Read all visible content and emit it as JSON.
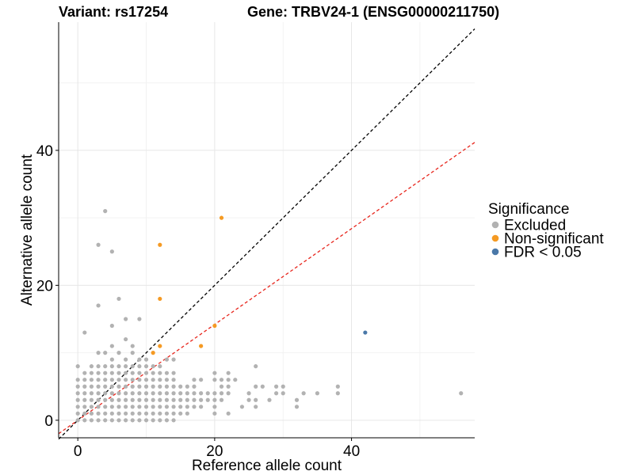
{
  "chart_data": {
    "type": "scatter",
    "title_left": "Variant: rs17254",
    "title_right": "Gene: TRBV24-1 (ENSG00000211750)",
    "xlabel": "Reference allele count",
    "ylabel": "Alternative allele count",
    "xlim": [
      -2.8,
      58
    ],
    "ylim": [
      -2.6,
      59
    ],
    "xticks": [
      0,
      20,
      40
    ],
    "yticks": [
      0,
      20,
      40
    ],
    "grid": true,
    "reference_lines": [
      {
        "name": "y = x",
        "slope": 1.0,
        "intercept": 0,
        "color": "#000000",
        "style": "dashed"
      },
      {
        "name": "red line",
        "slope": 0.71,
        "intercept": 0,
        "color": "#e8251c",
        "style": "dashed"
      }
    ],
    "legend": {
      "title": "Significance",
      "position": "right",
      "items": [
        {
          "label": "Excluded",
          "color": "#b2b2b2"
        },
        {
          "label": "Non-significant",
          "color": "#f59a23"
        },
        {
          "label": "FDR < 0.05",
          "color": "#4a78a8"
        }
      ]
    },
    "series": [
      {
        "name": "Excluded",
        "color": "#b2b2b2",
        "points": [
          [
            0,
            0
          ],
          [
            0,
            1
          ],
          [
            0,
            2
          ],
          [
            0,
            3
          ],
          [
            0,
            4
          ],
          [
            0,
            5
          ],
          [
            0,
            6
          ],
          [
            0,
            8
          ],
          [
            1,
            0
          ],
          [
            1,
            1
          ],
          [
            1,
            2
          ],
          [
            1,
            3
          ],
          [
            1,
            4
          ],
          [
            1,
            5
          ],
          [
            1,
            6
          ],
          [
            1,
            7
          ],
          [
            1,
            13
          ],
          [
            2,
            0
          ],
          [
            2,
            1
          ],
          [
            2,
            2
          ],
          [
            2,
            3
          ],
          [
            2,
            4
          ],
          [
            2,
            5
          ],
          [
            2,
            6
          ],
          [
            2,
            7
          ],
          [
            2,
            8
          ],
          [
            3,
            0
          ],
          [
            3,
            1
          ],
          [
            3,
            2
          ],
          [
            3,
            3
          ],
          [
            3,
            4
          ],
          [
            3,
            5
          ],
          [
            3,
            6
          ],
          [
            3,
            7
          ],
          [
            3,
            8
          ],
          [
            3,
            10
          ],
          [
            3,
            17
          ],
          [
            3,
            26
          ],
          [
            4,
            0
          ],
          [
            4,
            1
          ],
          [
            4,
            2
          ],
          [
            4,
            3
          ],
          [
            4,
            4
          ],
          [
            4,
            5
          ],
          [
            4,
            6
          ],
          [
            4,
            7
          ],
          [
            4,
            8
          ],
          [
            4,
            10
          ],
          [
            4,
            31
          ],
          [
            5,
            0
          ],
          [
            5,
            1
          ],
          [
            5,
            2
          ],
          [
            5,
            3
          ],
          [
            5,
            4
          ],
          [
            5,
            5
          ],
          [
            5,
            6
          ],
          [
            5,
            7
          ],
          [
            5,
            8
          ],
          [
            5,
            9
          ],
          [
            5,
            11
          ],
          [
            5,
            14
          ],
          [
            5,
            25
          ],
          [
            6,
            0
          ],
          [
            6,
            1
          ],
          [
            6,
            2
          ],
          [
            6,
            3
          ],
          [
            6,
            4
          ],
          [
            6,
            5
          ],
          [
            6,
            6
          ],
          [
            6,
            7
          ],
          [
            6,
            8
          ],
          [
            6,
            10
          ],
          [
            6,
            18
          ],
          [
            7,
            0
          ],
          [
            7,
            1
          ],
          [
            7,
            2
          ],
          [
            7,
            3
          ],
          [
            7,
            4
          ],
          [
            7,
            5
          ],
          [
            7,
            6
          ],
          [
            7,
            7
          ],
          [
            7,
            8
          ],
          [
            7,
            9
          ],
          [
            7,
            12
          ],
          [
            7,
            15
          ],
          [
            8,
            0
          ],
          [
            8,
            1
          ],
          [
            8,
            2
          ],
          [
            8,
            3
          ],
          [
            8,
            4
          ],
          [
            8,
            5
          ],
          [
            8,
            6
          ],
          [
            8,
            7
          ],
          [
            8,
            8
          ],
          [
            8,
            10
          ],
          [
            8,
            11
          ],
          [
            9,
            0
          ],
          [
            9,
            1
          ],
          [
            9,
            2
          ],
          [
            9,
            3
          ],
          [
            9,
            4
          ],
          [
            9,
            5
          ],
          [
            9,
            6
          ],
          [
            9,
            7
          ],
          [
            9,
            8
          ],
          [
            9,
            9
          ],
          [
            9,
            15
          ],
          [
            10,
            0
          ],
          [
            10,
            1
          ],
          [
            10,
            2
          ],
          [
            10,
            3
          ],
          [
            10,
            4
          ],
          [
            10,
            5
          ],
          [
            10,
            6
          ],
          [
            10,
            7
          ],
          [
            10,
            8
          ],
          [
            10,
            9
          ],
          [
            11,
            0
          ],
          [
            11,
            1
          ],
          [
            11,
            2
          ],
          [
            11,
            3
          ],
          [
            11,
            4
          ],
          [
            11,
            5
          ],
          [
            11,
            6
          ],
          [
            11,
            7
          ],
          [
            11,
            8
          ],
          [
            12,
            0
          ],
          [
            12,
            1
          ],
          [
            12,
            2
          ],
          [
            12,
            3
          ],
          [
            12,
            4
          ],
          [
            12,
            5
          ],
          [
            12,
            6
          ],
          [
            12,
            7
          ],
          [
            12,
            8
          ],
          [
            13,
            0
          ],
          [
            13,
            1
          ],
          [
            13,
            2
          ],
          [
            13,
            3
          ],
          [
            13,
            4
          ],
          [
            13,
            5
          ],
          [
            13,
            6
          ],
          [
            13,
            7
          ],
          [
            13,
            9
          ],
          [
            14,
            0
          ],
          [
            14,
            1
          ],
          [
            14,
            2
          ],
          [
            14,
            3
          ],
          [
            14,
            4
          ],
          [
            14,
            5
          ],
          [
            14,
            6
          ],
          [
            14,
            7
          ],
          [
            14,
            9
          ],
          [
            15,
            1
          ],
          [
            15,
            2
          ],
          [
            15,
            3
          ],
          [
            15,
            4
          ],
          [
            15,
            5
          ],
          [
            16,
            1
          ],
          [
            16,
            2
          ],
          [
            16,
            3
          ],
          [
            16,
            4
          ],
          [
            16,
            5
          ],
          [
            17,
            2
          ],
          [
            17,
            3
          ],
          [
            17,
            4
          ],
          [
            17,
            5
          ],
          [
            17,
            6
          ],
          [
            18,
            2
          ],
          [
            18,
            3
          ],
          [
            18,
            4
          ],
          [
            18,
            6
          ],
          [
            19,
            3
          ],
          [
            19,
            4
          ],
          [
            20,
            1
          ],
          [
            20,
            2
          ],
          [
            20,
            3
          ],
          [
            20,
            4
          ],
          [
            20,
            6
          ],
          [
            20,
            7
          ],
          [
            21,
            3
          ],
          [
            21,
            4
          ],
          [
            21,
            5
          ],
          [
            21,
            6
          ],
          [
            22,
            1
          ],
          [
            22,
            4
          ],
          [
            22,
            5
          ],
          [
            22,
            6
          ],
          [
            22,
            7
          ],
          [
            23,
            6
          ],
          [
            24,
            2
          ],
          [
            25,
            3
          ],
          [
            25,
            4
          ],
          [
            26,
            2
          ],
          [
            26,
            3
          ],
          [
            26,
            5
          ],
          [
            26,
            8
          ],
          [
            27,
            5
          ],
          [
            28,
            3
          ],
          [
            29,
            4
          ],
          [
            29,
            5
          ],
          [
            30,
            4
          ],
          [
            30,
            5
          ],
          [
            32,
            2
          ],
          [
            32,
            3
          ],
          [
            33,
            4
          ],
          [
            35,
            4
          ],
          [
            38,
            4
          ],
          [
            38,
            5
          ],
          [
            56,
            4
          ]
        ]
      },
      {
        "name": "Non-significant",
        "color": "#f59a23",
        "points": [
          [
            11,
            10
          ],
          [
            12,
            11
          ],
          [
            12,
            18
          ],
          [
            12,
            26
          ],
          [
            18,
            11
          ],
          [
            20,
            14
          ],
          [
            21,
            30
          ]
        ]
      },
      {
        "name": "FDR < 0.05",
        "color": "#4a78a8",
        "points": [
          [
            42,
            13
          ]
        ]
      }
    ]
  }
}
